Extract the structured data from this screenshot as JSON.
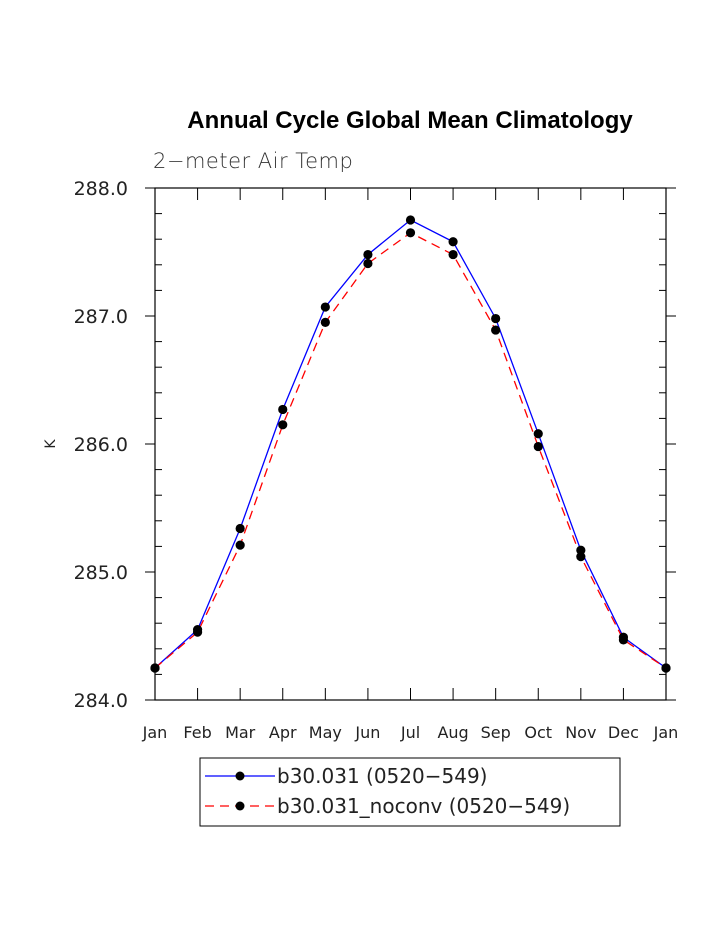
{
  "chart_data": {
    "type": "line",
    "title": "Annual Cycle Global Mean Climatology",
    "subtitle": "2−meter Air Temp",
    "xlabel": "",
    "ylabel": "K",
    "categories": [
      "Jan",
      "Feb",
      "Mar",
      "Apr",
      "May",
      "Jun",
      "Jul",
      "Aug",
      "Sep",
      "Oct",
      "Nov",
      "Dec",
      "Jan"
    ],
    "ylim": [
      284.0,
      288.0
    ],
    "yticks": [
      "284.0",
      "285.0",
      "286.0",
      "287.0",
      "288.0"
    ],
    "legend_position": "bottom",
    "series": [
      {
        "name": "b30.031 (0520−549)",
        "color": "#0000ff",
        "dash": "solid",
        "marker": "filled-circle",
        "values": [
          284.25,
          284.55,
          285.34,
          286.27,
          287.07,
          287.48,
          287.75,
          287.58,
          286.98,
          286.08,
          285.17,
          284.49,
          284.25
        ]
      },
      {
        "name": "b30.031_noconv (0520−549)",
        "color": "#ff0000",
        "dash": "dashed",
        "marker": "filled-circle",
        "values": [
          284.25,
          284.53,
          285.21,
          286.15,
          286.95,
          287.41,
          287.65,
          287.48,
          286.89,
          285.98,
          285.12,
          284.47,
          284.25
        ]
      }
    ]
  }
}
